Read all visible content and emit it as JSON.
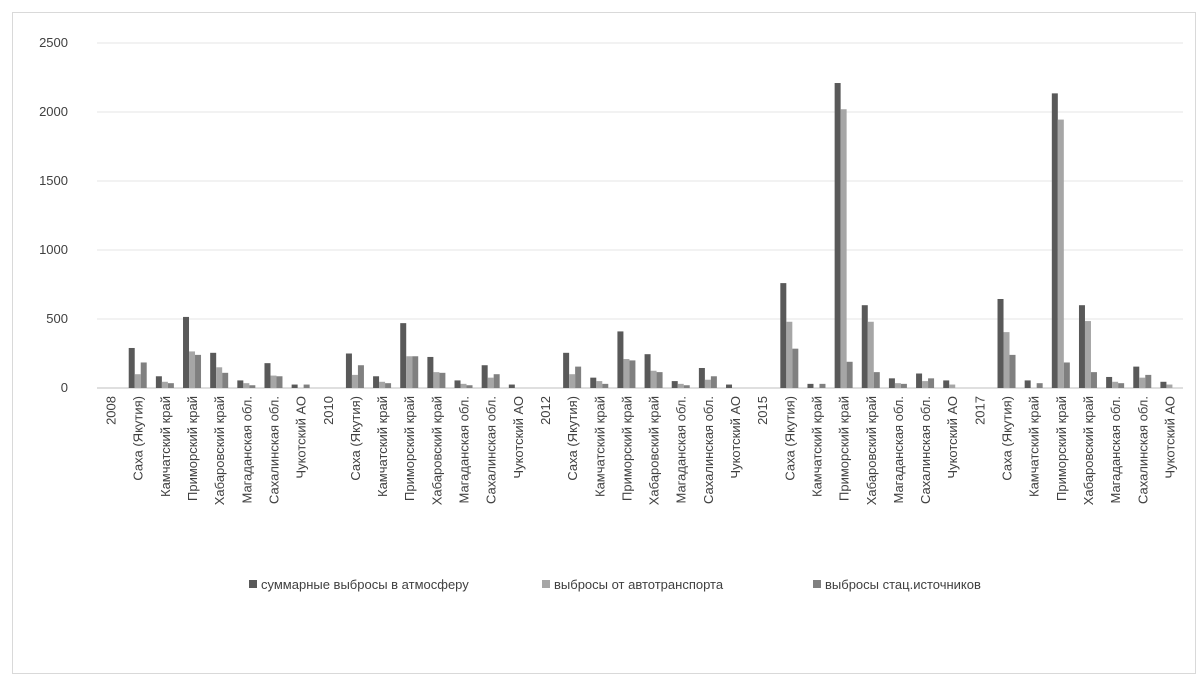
{
  "chart_data": {
    "type": "bar",
    "title": "",
    "xlabel": "",
    "ylabel": "",
    "ylim": [
      0,
      2500
    ],
    "yticks": [
      0,
      500,
      1000,
      1500,
      2000,
      2500
    ],
    "grid": true,
    "legend_position": "bottom",
    "categories": [
      "2008",
      "Саха (Якутия)",
      "Камчатский край",
      "Приморский край",
      "Хабаровский край",
      "Магаданская обл.",
      "Сахалинская обл.",
      "Чукотский АО",
      "2010",
      "Саха (Якутия)",
      "Камчатский край",
      "Приморский край",
      "Хабаровский край",
      "Магаданская обл.",
      "Сахалинская обл.",
      "Чукотский АО",
      "2012",
      "Саха (Якутия)",
      "Камчатский край",
      "Приморский край",
      "Хабаровский край",
      "Магаданская обл.",
      "Сахалинская обл.",
      "Чукотский АО",
      "2015",
      "Саха (Якутия)",
      "Камчатский край",
      "Приморский край",
      "Хабаровский край",
      "Магаданская обл.",
      "Сахалинская обл.",
      "Чукотский АО",
      "2017",
      "Саха (Якутия)",
      "Камчатский край",
      "Приморский край",
      "Хабаровский край",
      "Магаданская обл.",
      "Сахалинская обл.",
      "Чукотский АО"
    ],
    "series": [
      {
        "name": "суммарные выбросы в атмосферу",
        "color": "#595959",
        "values": [
          null,
          290,
          85,
          515,
          255,
          55,
          180,
          25,
          null,
          250,
          85,
          470,
          225,
          55,
          165,
          25,
          null,
          255,
          75,
          410,
          245,
          50,
          145,
          25,
          null,
          760,
          30,
          2210,
          600,
          70,
          105,
          55,
          null,
          645,
          55,
          2135,
          600,
          80,
          155,
          45
        ]
      },
      {
        "name": "выбросы от автотранспорта",
        "color": "#a6a6a6",
        "values": [
          null,
          100,
          45,
          265,
          150,
          35,
          90,
          null,
          null,
          95,
          45,
          230,
          115,
          30,
          75,
          null,
          null,
          100,
          50,
          210,
          125,
          30,
          60,
          null,
          null,
          480,
          null,
          2020,
          480,
          35,
          50,
          25,
          null,
          405,
          null,
          1945,
          485,
          45,
          75,
          25
        ]
      },
      {
        "name": "выбросы стац.источников",
        "color": "#808080",
        "values": [
          null,
          185,
          35,
          240,
          110,
          20,
          85,
          25,
          null,
          165,
          35,
          230,
          110,
          20,
          100,
          null,
          null,
          155,
          30,
          200,
          115,
          20,
          85,
          null,
          null,
          285,
          30,
          190,
          115,
          30,
          70,
          null,
          null,
          240,
          35,
          185,
          115,
          35,
          95,
          null
        ]
      }
    ]
  }
}
